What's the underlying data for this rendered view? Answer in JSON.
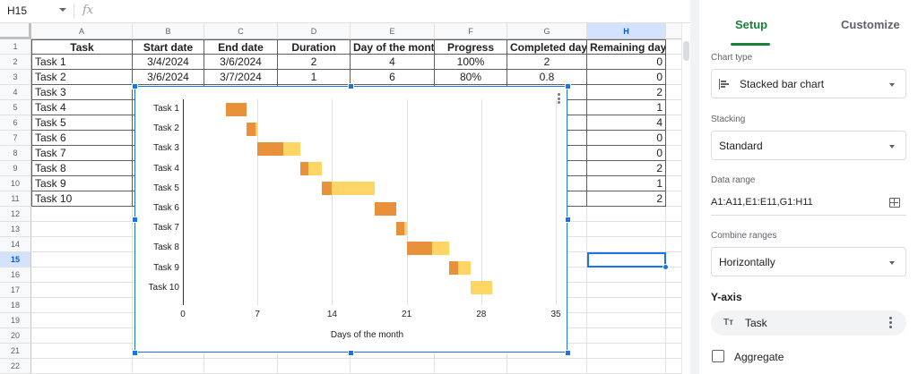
{
  "formula_bar": {
    "name_box": "H15",
    "fx_icon": "fx",
    "formula": ""
  },
  "columns": [
    "A",
    "B",
    "C",
    "D",
    "E",
    "F",
    "G",
    "H"
  ],
  "selected_column": "H",
  "selected_row": "15",
  "rows": [
    "1",
    "2",
    "3",
    "4",
    "5",
    "6",
    "7",
    "8",
    "9",
    "10",
    "11",
    "12",
    "13",
    "14",
    "15",
    "16",
    "17",
    "18",
    "19",
    "20",
    "21",
    "22"
  ],
  "table": {
    "headers": [
      "Task",
      "Start date",
      "End date",
      "Duration",
      "Day of the month",
      "Progress",
      "Completed days",
      "Remaining days"
    ],
    "rows": [
      [
        "Task 1",
        "3/4/2024",
        "3/6/2024",
        "2",
        "4",
        "100%",
        "2",
        "0"
      ],
      [
        "Task 2",
        "3/6/2024",
        "3/7/2024",
        "1",
        "6",
        "80%",
        "0.8",
        "0"
      ],
      [
        "Task 3",
        "",
        "",
        "",
        "",
        "",
        "",
        "2"
      ],
      [
        "Task 4",
        "",
        "",
        "",
        "",
        "",
        "",
        "1"
      ],
      [
        "Task 5",
        "",
        "",
        "",
        "",
        "",
        "",
        "4"
      ],
      [
        "Task 6",
        "",
        "",
        "",
        "",
        "",
        "",
        "0"
      ],
      [
        "Task 7",
        "",
        "",
        "",
        "",
        "",
        "",
        "0"
      ],
      [
        "Task 8",
        "",
        "",
        "",
        "",
        "",
        "",
        "2"
      ],
      [
        "Task 9",
        "",
        "",
        "",
        "",
        "",
        "",
        "1"
      ],
      [
        "Task 10",
        "",
        "",
        "",
        "",
        "",
        "",
        "2"
      ]
    ]
  },
  "chart_data": {
    "type": "bar",
    "orientation": "horizontal",
    "stacked": true,
    "title": "",
    "xlabel": "Days of the month",
    "ylabel": "",
    "xlim": [
      0,
      35
    ],
    "x_ticks": [
      "0",
      "7",
      "14",
      "21",
      "28",
      "35"
    ],
    "grid": true,
    "legend": "none",
    "categories": [
      "Task 1",
      "Task 2",
      "Task 3",
      "Task 4",
      "Task 5",
      "Task 6",
      "Task 7",
      "Task 8",
      "Task 9",
      "Task 10"
    ],
    "series": [
      {
        "name": "Day of the month",
        "color": "transparent",
        "values": [
          4,
          6,
          7,
          11,
          13,
          18,
          20,
          21,
          25,
          27
        ]
      },
      {
        "name": "Completed days",
        "color": "#e8913a",
        "values": [
          2,
          0.8,
          2.4,
          0.8,
          1,
          2,
          0.8,
          2.4,
          0.8,
          0
        ]
      },
      {
        "name": "Remaining days",
        "color": "#ffd666",
        "values": [
          0,
          0.2,
          1.6,
          1.2,
          4,
          0,
          0.2,
          1.6,
          1.2,
          2
        ]
      }
    ]
  },
  "panel": {
    "tabs": [
      {
        "label": "Setup",
        "active": true
      },
      {
        "label": "Customize",
        "active": false
      }
    ],
    "chart_type_label": "Chart type",
    "chart_type_value": "Stacked bar chart",
    "stacking_label": "Stacking",
    "stacking_value": "Standard",
    "data_range_label": "Data range",
    "data_range_value": "A1:A11,E1:E11,G1:H11",
    "combine_ranges_label": "Combine ranges",
    "combine_ranges_value": "Horizontally",
    "y_axis_title": "Y-axis",
    "y_axis_chip": "Task",
    "y_axis_chip_icon": "Tт",
    "aggregate_label": "Aggregate",
    "aggregate_checked": false
  },
  "colors": {
    "accent_green": "#188038",
    "selection_blue": "#1a73e8",
    "completed": "#e8913a",
    "remaining": "#ffd666"
  }
}
